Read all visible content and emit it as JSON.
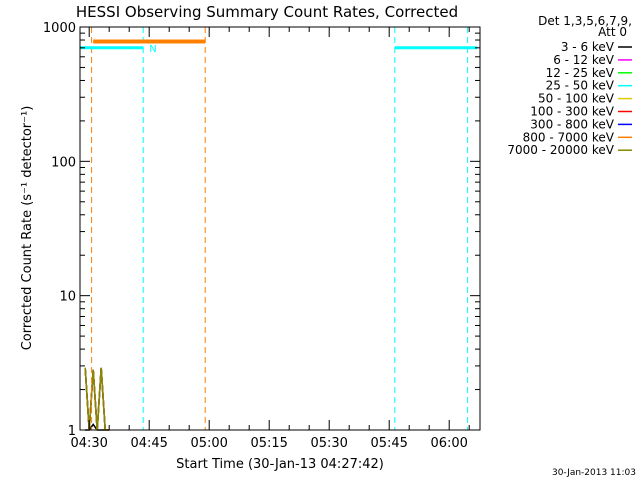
{
  "chart_data": {
    "type": "line",
    "title": "HESSI Observing Summary Count Rates, Corrected",
    "xlabel": "Start Time (30-Jan-13 04:27:42)",
    "ylabel": "Corrected Count Rate (s⁻¹ detector⁻¹)",
    "yscale": "log",
    "ylim": [
      1,
      1000
    ],
    "xlim": [
      "04:27",
      "06:07"
    ],
    "x_ticks": [
      "04:30",
      "04:45",
      "05:00",
      "05:15",
      "05:30",
      "05:45",
      "06:00"
    ],
    "x_tick_minutes": [
      270,
      285,
      300,
      315,
      330,
      345,
      360
    ],
    "y_ticks": [
      "1",
      "10",
      "100",
      "1000"
    ],
    "y_tick_values": [
      1,
      10,
      100,
      1000
    ],
    "x_minor_step_minutes": 5,
    "grid": false,
    "legend_header": [
      "Det 1,3,5,6,7,9,",
      "Att 0"
    ],
    "legend_position": "top-right",
    "timestamp": "30-Jan-2013 11:03",
    "series": [
      {
        "name": "3 - 6 keV",
        "color": "#000000",
        "x": [
          269,
          270,
          271,
          272,
          273,
          274,
          275
        ],
        "y": [
          1.0,
          1.0,
          1.1,
          1.0,
          1.0,
          1.0,
          1.0
        ]
      },
      {
        "name": "6 - 12 keV",
        "color": "#ff00ff",
        "x": [
          269,
          270,
          271,
          272,
          273,
          274,
          275
        ],
        "y": [
          2.9,
          1.0,
          2.8,
          1.0,
          2.9,
          1.0,
          1.0
        ]
      },
      {
        "name": "12 - 25 keV",
        "color": "#00ff00",
        "x": [
          269,
          270,
          271,
          272,
          273,
          274,
          275
        ],
        "y": [
          2.9,
          1.0,
          2.8,
          1.0,
          2.9,
          1.0,
          1.0
        ]
      },
      {
        "name": "25 - 50 keV",
        "color": "#00ffff",
        "x": [
          269,
          270,
          271,
          272,
          273,
          274,
          275
        ],
        "y": [
          2.9,
          1.0,
          2.8,
          1.0,
          2.9,
          1.0,
          1.0
        ]
      },
      {
        "name": "50 - 100 keV",
        "color": "#ddcc00",
        "x": [
          269,
          270,
          271,
          272,
          273,
          274,
          275
        ],
        "y": [
          2.9,
          1.0,
          2.8,
          1.0,
          2.9,
          1.0,
          1.0
        ]
      },
      {
        "name": "100 - 300 keV",
        "color": "#ff0000",
        "x": [
          269,
          270,
          271,
          272,
          273,
          274,
          275
        ],
        "y": [
          2.9,
          1.0,
          2.8,
          1.0,
          2.9,
          1.0,
          1.0
        ]
      },
      {
        "name": "300 - 800 keV",
        "color": "#0000ff",
        "x": [
          269,
          270,
          271,
          272,
          273,
          274,
          275
        ],
        "y": [
          2.9,
          1.0,
          2.8,
          1.0,
          2.9,
          1.0,
          1.0
        ]
      },
      {
        "name": "800 - 7000 keV",
        "color": "#ff8000",
        "x": [
          269,
          270,
          271,
          272,
          273,
          274,
          275
        ],
        "y": [
          2.9,
          1.0,
          2.8,
          1.0,
          2.9,
          1.0,
          1.0
        ]
      },
      {
        "name": "7000 - 20000 keV",
        "color": "#888800",
        "x": [
          269,
          270,
          271,
          272,
          273,
          274,
          275
        ],
        "y": [
          2.9,
          1.0,
          2.8,
          1.0,
          2.9,
          1.0,
          1.0
        ]
      }
    ],
    "intervals": [
      {
        "label": "",
        "color": "#00ffff",
        "x0": 267.7,
        "x1": 283.5,
        "y": 700,
        "style": "solid",
        "thick": 3
      },
      {
        "label": "N",
        "color": "#00ffff",
        "x0": 283.5,
        "x1": 283.5,
        "y": 700,
        "style": "label",
        "thick": 0
      },
      {
        "label": "",
        "color": "#ff8000",
        "x0": 271.0,
        "x1": 299.0,
        "y": 780,
        "style": "solid",
        "thick": 4
      },
      {
        "label": "",
        "color": "#00ffff",
        "x0": 346.4,
        "x1": 367.0,
        "y": 700,
        "style": "solid",
        "thick": 3
      }
    ],
    "vlines": [
      {
        "x": 270.6,
        "color": "#ff8000",
        "style": "dashed"
      },
      {
        "x": 283.5,
        "color": "#00ffff",
        "style": "dashed"
      },
      {
        "x": 299.0,
        "color": "#ff8000",
        "style": "dashed"
      },
      {
        "x": 346.4,
        "color": "#00ffff",
        "style": "dashed"
      },
      {
        "x": 364.6,
        "color": "#00ffff",
        "style": "dashed"
      }
    ]
  }
}
